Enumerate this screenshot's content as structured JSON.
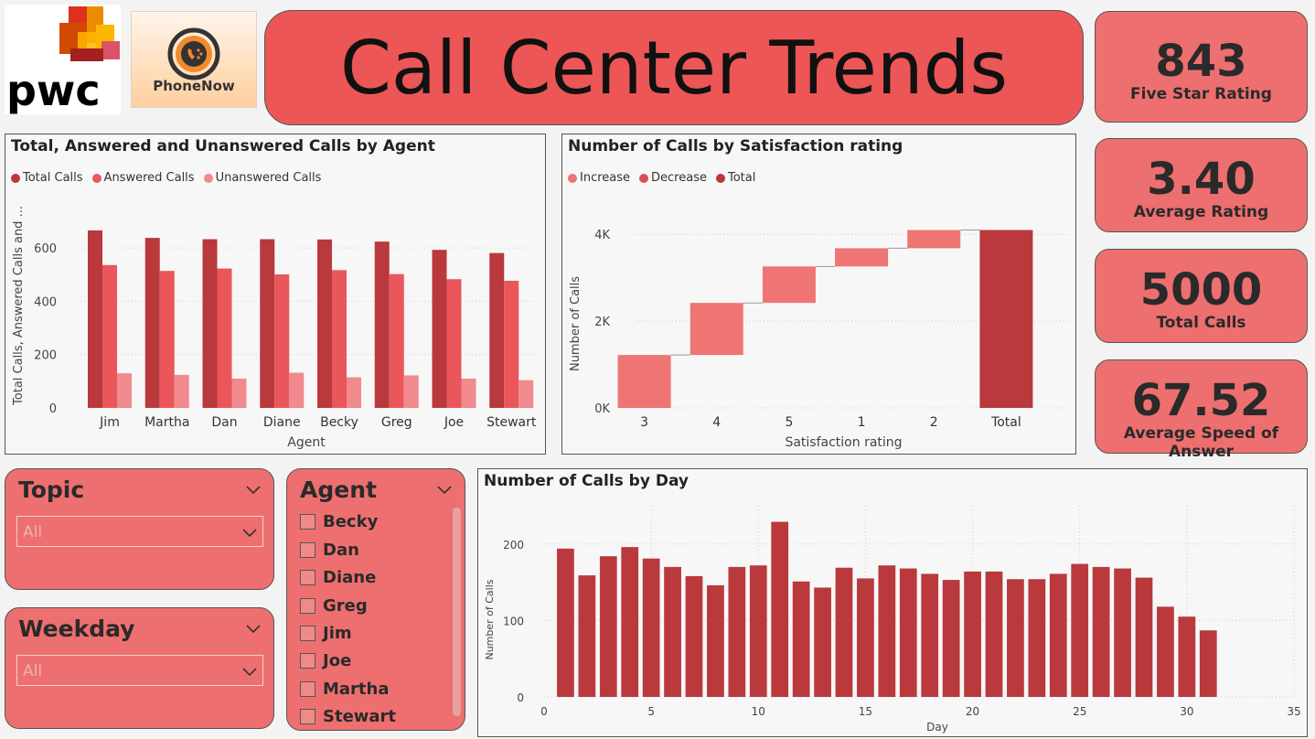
{
  "logos": {
    "pwc": "pwc",
    "phonenow": "PhoneNow"
  },
  "title": "Call Center Trends",
  "kpis": [
    {
      "value": "843",
      "label": "Five Star Rating"
    },
    {
      "value": "3.40",
      "label": "Average Rating"
    },
    {
      "value": "5000",
      "label": "Total Calls"
    },
    {
      "value": "67.52",
      "label": "Average Speed of Answer"
    }
  ],
  "colors": {
    "dark": "#b9393d",
    "mid": "#e9575b",
    "light": "#f08a8e",
    "waterfall": "#ef7474"
  },
  "slicers": {
    "topic": {
      "title": "Topic",
      "value": "All"
    },
    "weekday": {
      "title": "Weekday",
      "value": "All"
    },
    "agent": {
      "title": "Agent",
      "items": [
        "Becky",
        "Dan",
        "Diane",
        "Greg",
        "Jim",
        "Joe",
        "Martha",
        "Stewart"
      ]
    }
  },
  "chart_data": [
    {
      "type": "bar",
      "title": "Total, Answered and Unanswered Calls by Agent",
      "xlabel": "Agent",
      "ylabel": "Total Calls, Answered Calls and ...",
      "categories": [
        "Jim",
        "Martha",
        "Dan",
        "Diane",
        "Becky",
        "Greg",
        "Joe",
        "Stewart"
      ],
      "series": [
        {
          "name": "Total Calls",
          "values": [
            666,
            638,
            633,
            633,
            632,
            624,
            593,
            581
          ]
        },
        {
          "name": "Answered Calls",
          "values": [
            536,
            514,
            523,
            501,
            517,
            502,
            483,
            477
          ]
        },
        {
          "name": "Unanswered Calls",
          "values": [
            130,
            124,
            110,
            132,
            115,
            122,
            110,
            104
          ]
        }
      ],
      "yticks": [
        "0",
        "200",
        "400",
        "600"
      ],
      "ylim": [
        0,
        700
      ],
      "legend": "top-left"
    },
    {
      "type": "waterfall",
      "title": "Number of Calls by Satisfaction rating",
      "xlabel": "Satisfaction rating",
      "ylabel": "Number of Calls",
      "legend_items": [
        "Increase",
        "Decrease",
        "Total"
      ],
      "categories": [
        "3",
        "4",
        "5",
        "1",
        "2",
        "Total"
      ],
      "values": [
        1220,
        1200,
        840,
        420,
        420,
        4100
      ],
      "yticks": [
        "0K",
        "2K",
        "4K"
      ],
      "ylim": [
        0,
        4300
      ]
    },
    {
      "type": "bar",
      "title": "Number of Calls by Day",
      "xlabel": "Day",
      "ylabel": "Number of Calls",
      "x": [
        1,
        2,
        3,
        4,
        5,
        6,
        7,
        8,
        9,
        10,
        11,
        12,
        13,
        14,
        15,
        16,
        17,
        18,
        19,
        20,
        21,
        22,
        23,
        24,
        25,
        26,
        27,
        28,
        29,
        30,
        31
      ],
      "values": [
        194,
        159,
        184,
        196,
        181,
        170,
        158,
        146,
        170,
        172,
        229,
        151,
        143,
        169,
        155,
        172,
        168,
        161,
        153,
        164,
        164,
        154,
        154,
        161,
        174,
        170,
        168,
        156,
        118,
        105,
        87
      ],
      "xticks": [
        "0",
        "5",
        "10",
        "15",
        "20",
        "25",
        "30",
        "35"
      ],
      "yticks": [
        "0",
        "100",
        "200"
      ],
      "xlim": [
        0,
        35
      ],
      "ylim": [
        0,
        250
      ]
    }
  ]
}
